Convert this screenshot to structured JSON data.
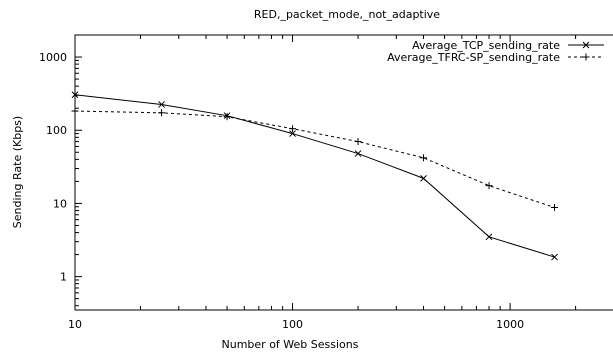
{
  "chart_data": {
    "type": "line",
    "title": "RED,_packet_mode,_not_adaptive",
    "xlabel": "Number of Web Sessions",
    "ylabel": "Sending Rate (Kbps)",
    "x_scale": "log",
    "y_scale": "log",
    "xlim": [
      10,
      3200
    ],
    "ylim": [
      0.35,
      2000
    ],
    "x_ticks": [
      {
        "value": 10,
        "label": "10"
      },
      {
        "value": 100,
        "label": "100"
      },
      {
        "value": 1000,
        "label": "1000"
      }
    ],
    "y_ticks": [
      {
        "value": 1,
        "label": "1"
      },
      {
        "value": 10,
        "label": "10"
      },
      {
        "value": 100,
        "label": "100"
      },
      {
        "value": 1000,
        "label": "1000"
      }
    ],
    "grid": false,
    "legend_position": "top-right",
    "series": [
      {
        "name": "Average_TCP_sending_rate",
        "line": "solid",
        "marker": "x",
        "x": [
          10,
          25,
          50,
          100,
          200,
          400,
          800,
          1600
        ],
        "y": [
          305,
          225,
          158,
          90,
          48,
          22,
          3.5,
          1.85
        ]
      },
      {
        "name": "Average_TFRC-SP_sending_rate",
        "line": "dashed",
        "marker": "+",
        "x": [
          10,
          25,
          50,
          100,
          200,
          400,
          800,
          1600
        ],
        "y": [
          183,
          173,
          153,
          105,
          70,
          42,
          17.5,
          8.8
        ]
      }
    ]
  }
}
